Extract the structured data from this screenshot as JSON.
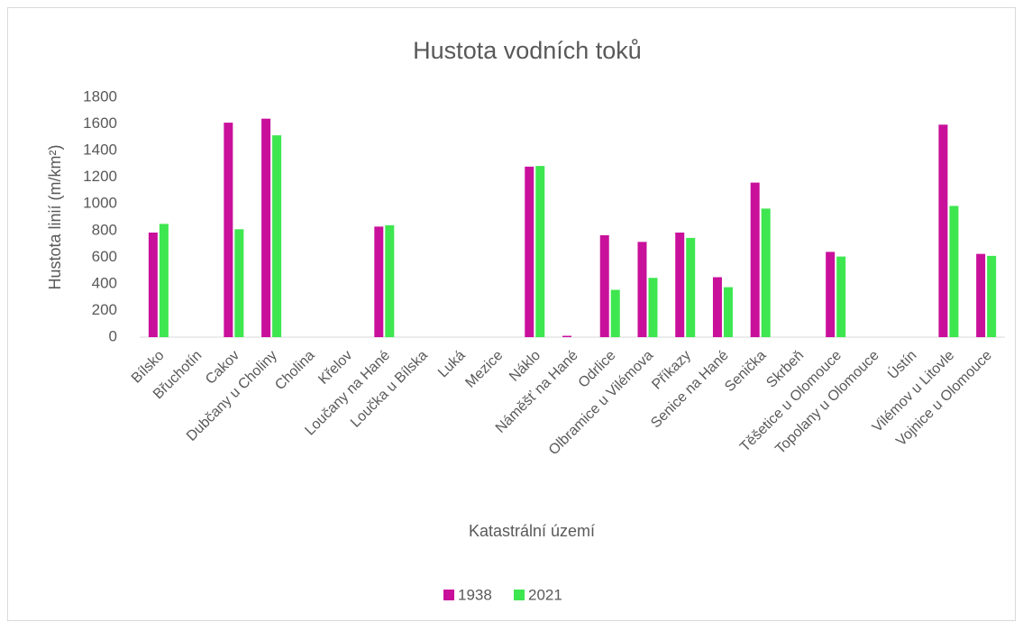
{
  "chart_data": {
    "type": "bar",
    "title": "Hustota vodních toků",
    "x_label": "Katastrální území",
    "y_label": "Hustota linií (m/km²)",
    "categories": [
      "Bílsko",
      "Břuchotín",
      "Cakov",
      "Dubčany u Choliny",
      "Cholina",
      "Křelov",
      "Loučany na Hané",
      "Loučka u Bílska",
      "Luká",
      "Mezice",
      "Náklo",
      "Náměšť na Hané",
      "Odrlice",
      "Olbramice u Vilémova",
      "Příkazy",
      "Senice na Hané",
      "Senička",
      "Skrbeň",
      "Těšetice u Olomouce",
      "Topolany u Olomouce",
      "Ústín",
      "Vilémov u Litovle",
      "Vojnice u Olomouce"
    ],
    "series": [
      {
        "name": "1938",
        "color": "#c9109b",
        "values": [
          785,
          0,
          1610,
          1640,
          0,
          0,
          830,
          0,
          0,
          0,
          1280,
          10,
          765,
          715,
          785,
          450,
          1160,
          0,
          640,
          0,
          0,
          1595,
          625
        ]
      },
      {
        "name": "2021",
        "color": "#3ee650",
        "values": [
          850,
          0,
          810,
          1515,
          0,
          0,
          840,
          0,
          0,
          0,
          1285,
          0,
          355,
          445,
          745,
          375,
          965,
          0,
          605,
          0,
          0,
          985,
          610
        ]
      }
    ],
    "ylim": [
      0,
      1800
    ],
    "yticks": [
      0,
      200,
      400,
      600,
      800,
      1000,
      1200,
      1400,
      1600,
      1800
    ],
    "grid": false,
    "legend": "bottom"
  }
}
